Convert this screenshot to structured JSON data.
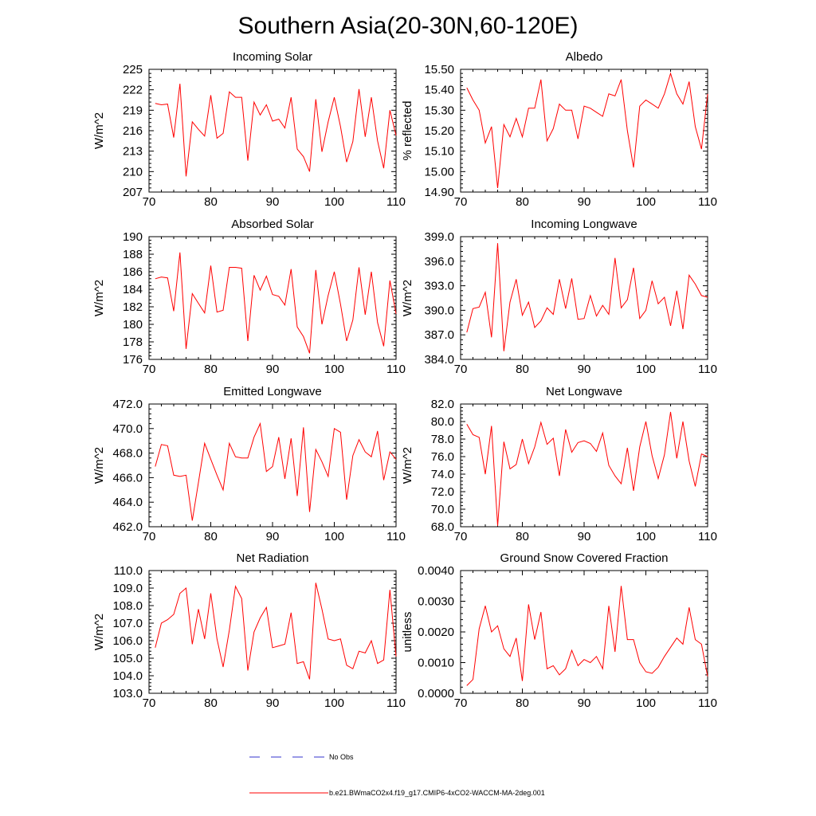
{
  "title": "Southern Asia(20-30N,60-120E)",
  "legend": {
    "obs_label": "No Obs",
    "obs_color": "#3333cc",
    "model_label": "b.e21.BWmaCO2x4.f19_g17.CMIP6-4xCO2-WACCM-MA-2deg.001",
    "model_color": "#ff0000"
  },
  "chart_data": [
    {
      "type": "line",
      "title": "Incoming Solar",
      "ylabel": "W/m^2",
      "xlim": [
        70,
        110
      ],
      "ylim": [
        207,
        225
      ],
      "xticks": [
        70,
        80,
        90,
        100,
        110
      ],
      "yticks": [
        207,
        210,
        213,
        216,
        219,
        222,
        225
      ],
      "ytick_labels": [
        "207",
        "210",
        "213",
        "216",
        "219",
        "222",
        "225"
      ],
      "x": [
        71,
        72,
        73,
        74,
        75,
        76,
        77,
        78,
        79,
        80,
        81,
        82,
        83,
        84,
        85,
        86,
        87,
        88,
        89,
        90,
        91,
        92,
        93,
        94,
        95,
        96,
        97,
        98,
        99,
        100,
        101,
        102,
        103,
        104,
        105,
        106,
        107,
        108,
        109,
        110
      ],
      "values": [
        220.0,
        219.8,
        219.9,
        215.0,
        222.9,
        209.3,
        217.3,
        216.2,
        215.2,
        221.2,
        214.9,
        215.6,
        221.7,
        220.9,
        220.9,
        211.6,
        220.2,
        218.3,
        219.8,
        217.4,
        217.7,
        216.4,
        220.9,
        213.3,
        212.2,
        210.0,
        220.6,
        212.9,
        217.3,
        220.9,
        216.6,
        211.4,
        214.4,
        222.1,
        215.1,
        220.9,
        214.5,
        210.5,
        219.0,
        215.3
      ]
    },
    {
      "type": "line",
      "title": "Albedo",
      "ylabel": "% reflected",
      "xlim": [
        70,
        110
      ],
      "ylim": [
        14.9,
        15.5
      ],
      "xticks": [
        70,
        80,
        90,
        100,
        110
      ],
      "yticks": [
        14.9,
        15.0,
        15.1,
        15.2,
        15.3,
        15.4,
        15.5
      ],
      "ytick_labels": [
        "14.90",
        "15.00",
        "15.10",
        "15.20",
        "15.30",
        "15.40",
        "15.50"
      ],
      "x": [
        71,
        72,
        73,
        74,
        75,
        76,
        77,
        78,
        79,
        80,
        81,
        82,
        83,
        84,
        85,
        86,
        87,
        88,
        89,
        90,
        91,
        92,
        93,
        94,
        95,
        96,
        97,
        98,
        99,
        100,
        101,
        102,
        103,
        104,
        105,
        106,
        107,
        108,
        109,
        110
      ],
      "values": [
        15.41,
        15.35,
        15.3,
        15.14,
        15.22,
        14.92,
        15.23,
        15.17,
        15.26,
        15.17,
        15.31,
        15.31,
        15.45,
        15.15,
        15.21,
        15.33,
        15.3,
        15.3,
        15.16,
        15.32,
        15.31,
        15.29,
        15.27,
        15.38,
        15.37,
        15.45,
        15.2,
        15.02,
        15.32,
        15.35,
        15.33,
        15.31,
        15.38,
        15.48,
        15.38,
        15.33,
        15.44,
        15.22,
        15.11,
        15.38
      ]
    },
    {
      "type": "line",
      "title": "Absorbed Solar",
      "ylabel": "W/m^2",
      "xlim": [
        70,
        110
      ],
      "ylim": [
        176,
        190
      ],
      "xticks": [
        70,
        80,
        90,
        100,
        110
      ],
      "yticks": [
        176,
        178,
        180,
        182,
        184,
        186,
        188,
        190
      ],
      "ytick_labels": [
        "176",
        "178",
        "180",
        "182",
        "184",
        "186",
        "188",
        "190"
      ],
      "x": [
        71,
        72,
        73,
        74,
        75,
        76,
        77,
        78,
        79,
        80,
        81,
        82,
        83,
        84,
        85,
        86,
        87,
        88,
        89,
        90,
        91,
        92,
        93,
        94,
        95,
        96,
        97,
        98,
        99,
        100,
        101,
        102,
        103,
        104,
        105,
        106,
        107,
        108,
        109,
        110
      ],
      "values": [
        185.2,
        185.4,
        185.3,
        181.5,
        188.2,
        177.2,
        183.5,
        182.4,
        181.3,
        186.7,
        181.4,
        181.6,
        186.5,
        186.5,
        186.4,
        178.1,
        185.6,
        183.9,
        185.5,
        183.4,
        183.2,
        182.2,
        186.3,
        179.7,
        178.6,
        176.7,
        186.2,
        180.0,
        183.3,
        186.0,
        182.3,
        178.1,
        180.5,
        186.5,
        181.1,
        186.0,
        180.2,
        177.5,
        185.0,
        181.2
      ]
    },
    {
      "type": "line",
      "title": "Incoming Longwave",
      "ylabel": "W/m^2",
      "xlim": [
        70,
        110
      ],
      "ylim": [
        384,
        399
      ],
      "xticks": [
        70,
        80,
        90,
        100,
        110
      ],
      "yticks": [
        384,
        387,
        390,
        393,
        396,
        399
      ],
      "ytick_labels": [
        "384.0",
        "387.0",
        "390.0",
        "393.0",
        "396.0",
        "399.0"
      ],
      "x": [
        71,
        72,
        73,
        74,
        75,
        76,
        77,
        78,
        79,
        80,
        81,
        82,
        83,
        84,
        85,
        86,
        87,
        88,
        89,
        90,
        91,
        92,
        93,
        94,
        95,
        96,
        97,
        98,
        99,
        100,
        101,
        102,
        103,
        104,
        105,
        106,
        107,
        108,
        109,
        110
      ],
      "values": [
        387.3,
        390.2,
        390.4,
        392.2,
        386.7,
        398.2,
        385.0,
        391.0,
        393.8,
        389.4,
        391.0,
        387.9,
        388.7,
        390.3,
        389.5,
        393.8,
        390.2,
        393.9,
        388.9,
        389.0,
        391.8,
        389.3,
        390.6,
        389.5,
        396.4,
        390.3,
        391.3,
        395.2,
        389.0,
        390.0,
        393.6,
        390.8,
        391.6,
        388.1,
        392.4,
        387.7,
        394.3,
        393.2,
        391.8,
        391.6
      ]
    },
    {
      "type": "line",
      "title": "Emitted Longwave",
      "ylabel": "W/m^2",
      "xlim": [
        70,
        110
      ],
      "ylim": [
        462,
        472
      ],
      "xticks": [
        70,
        80,
        90,
        100,
        110
      ],
      "yticks": [
        462,
        464,
        466,
        468,
        470,
        472
      ],
      "ytick_labels": [
        "462.0",
        "464.0",
        "466.0",
        "468.0",
        "470.0",
        "472.0"
      ],
      "x": [
        71,
        72,
        73,
        74,
        75,
        76,
        77,
        78,
        79,
        80,
        81,
        82,
        83,
        84,
        85,
        86,
        87,
        88,
        89,
        90,
        91,
        92,
        93,
        94,
        95,
        96,
        97,
        98,
        99,
        100,
        101,
        102,
        103,
        104,
        105,
        106,
        107,
        108,
        109,
        110
      ],
      "values": [
        466.9,
        468.7,
        468.6,
        466.2,
        466.1,
        466.2,
        462.5,
        465.6,
        468.8,
        467.5,
        466.2,
        465.0,
        468.8,
        467.7,
        467.6,
        467.6,
        469.3,
        470.4,
        466.5,
        466.9,
        469.3,
        465.9,
        469.2,
        464.5,
        470.1,
        463.2,
        468.3,
        467.3,
        466.1,
        470.0,
        469.7,
        464.2,
        467.8,
        469.1,
        468.1,
        467.7,
        469.8,
        465.8,
        468.1,
        467.5
      ]
    },
    {
      "type": "line",
      "title": "Net Longwave",
      "ylabel": "W/m^2",
      "xlim": [
        70,
        110
      ],
      "ylim": [
        68,
        82
      ],
      "xticks": [
        70,
        80,
        90,
        100,
        110
      ],
      "yticks": [
        68,
        70,
        72,
        74,
        76,
        78,
        80,
        82
      ],
      "ytick_labels": [
        "68.0",
        "70.0",
        "72.0",
        "74.0",
        "76.0",
        "78.0",
        "80.0",
        "82.0"
      ],
      "x": [
        71,
        72,
        73,
        74,
        75,
        76,
        77,
        78,
        79,
        80,
        81,
        82,
        83,
        84,
        85,
        86,
        87,
        88,
        89,
        90,
        91,
        92,
        93,
        94,
        95,
        96,
        97,
        98,
        99,
        100,
        101,
        102,
        103,
        104,
        105,
        106,
        107,
        108,
        109,
        110
      ],
      "values": [
        79.7,
        78.5,
        78.2,
        74.0,
        79.5,
        68.1,
        77.7,
        74.6,
        75.1,
        78.0,
        75.2,
        77.1,
        79.9,
        77.4,
        78.1,
        73.8,
        79.1,
        76.5,
        77.6,
        77.8,
        77.5,
        76.6,
        78.7,
        75.0,
        73.8,
        72.9,
        77.0,
        72.1,
        77.1,
        80.0,
        76.1,
        73.5,
        76.2,
        81.1,
        75.8,
        80.0,
        75.5,
        72.6,
        76.3,
        76.0
      ]
    },
    {
      "type": "line",
      "title": "Net Radiation",
      "ylabel": "W/m^2",
      "xlim": [
        70,
        110
      ],
      "ylim": [
        103,
        110
      ],
      "xticks": [
        70,
        80,
        90,
        100,
        110
      ],
      "yticks": [
        103,
        104,
        105,
        106,
        107,
        108,
        109,
        110
      ],
      "ytick_labels": [
        "103.0",
        "104.0",
        "105.0",
        "106.0",
        "107.0",
        "108.0",
        "109.0",
        "110.0"
      ],
      "x": [
        71,
        72,
        73,
        74,
        75,
        76,
        77,
        78,
        79,
        80,
        81,
        82,
        83,
        84,
        85,
        86,
        87,
        88,
        89,
        90,
        91,
        92,
        93,
        94,
        95,
        96,
        97,
        98,
        99,
        100,
        101,
        102,
        103,
        104,
        105,
        106,
        107,
        108,
        109,
        110
      ],
      "values": [
        105.6,
        107.0,
        107.2,
        107.5,
        108.7,
        109.0,
        105.8,
        107.8,
        106.1,
        108.7,
        106.1,
        104.5,
        106.6,
        109.1,
        108.4,
        104.3,
        106.5,
        107.3,
        107.9,
        105.6,
        105.7,
        105.8,
        107.6,
        104.7,
        104.8,
        103.8,
        109.3,
        107.8,
        106.1,
        106.0,
        106.1,
        104.6,
        104.4,
        105.4,
        105.3,
        106.0,
        104.7,
        104.9,
        108.9,
        105.1
      ]
    },
    {
      "type": "line",
      "title": "Ground Snow Covered Fraction",
      "ylabel": "unitless",
      "xlim": [
        70,
        110
      ],
      "ylim": [
        0,
        0.004
      ],
      "xticks": [
        70,
        80,
        90,
        100,
        110
      ],
      "yticks": [
        0,
        0.001,
        0.002,
        0.003,
        0.004
      ],
      "ytick_labels": [
        "0.0000",
        "0.0010",
        "0.0020",
        "0.0030",
        "0.0040"
      ],
      "x": [
        71,
        72,
        73,
        74,
        75,
        76,
        77,
        78,
        79,
        80,
        81,
        82,
        83,
        84,
        85,
        86,
        87,
        88,
        89,
        90,
        91,
        92,
        93,
        94,
        95,
        96,
        97,
        98,
        99,
        100,
        101,
        102,
        103,
        104,
        105,
        106,
        107,
        108,
        109,
        110
      ],
      "values": [
        0.00025,
        0.00045,
        0.0021,
        0.00285,
        0.002,
        0.0022,
        0.00145,
        0.0012,
        0.0018,
        0.0004,
        0.0029,
        0.00175,
        0.00265,
        0.0008,
        0.0009,
        0.0006,
        0.0008,
        0.0014,
        0.0009,
        0.0011,
        0.001,
        0.0012,
        0.0008,
        0.00285,
        0.00135,
        0.0035,
        0.00175,
        0.00175,
        0.001,
        0.0007,
        0.00065,
        0.00085,
        0.0012,
        0.0015,
        0.0018,
        0.0016,
        0.0028,
        0.00175,
        0.0016,
        0.00055
      ]
    }
  ]
}
